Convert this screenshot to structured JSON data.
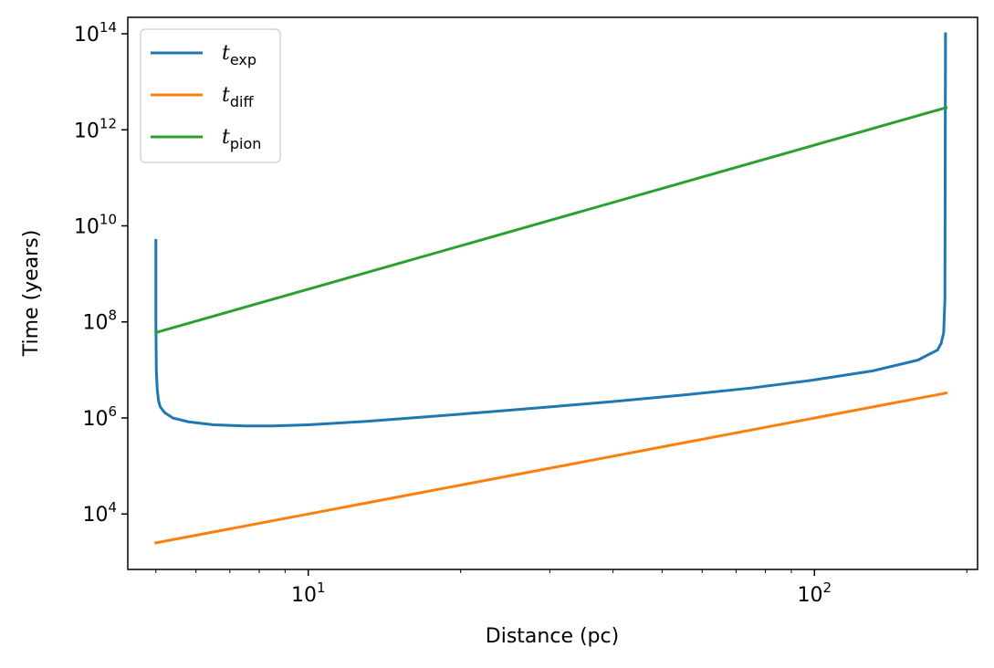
{
  "chart_data": {
    "type": "line",
    "xlabel": "Distance (pc)",
    "ylabel": "Time (years)",
    "xscale": "log",
    "yscale": "log",
    "xlim": [
      4.4,
      210
    ],
    "ylim": [
      700,
      220000000000000.0
    ],
    "x_major_ticks": [
      {
        "value": 10,
        "base": "10",
        "exp": "1"
      },
      {
        "value": 100,
        "base": "10",
        "exp": "2"
      }
    ],
    "y_major_ticks": [
      {
        "value": 10000,
        "base": "10",
        "exp": "4"
      },
      {
        "value": 1000000,
        "base": "10",
        "exp": "6"
      },
      {
        "value": 100000000,
        "base": "10",
        "exp": "8"
      },
      {
        "value": 10000000000,
        "base": "10",
        "exp": "10"
      },
      {
        "value": 1000000000000,
        "base": "10",
        "exp": "12"
      },
      {
        "value": 100000000000000,
        "base": "10",
        "exp": "14"
      }
    ],
    "legend_position": "upper-left",
    "grid": false,
    "series": [
      {
        "name": "t_exp",
        "label_main": "t",
        "label_sub": "exp",
        "color": "#1f77b4",
        "x": [
          5.0,
          5.0,
          5.01,
          5.03,
          5.06,
          5.1,
          5.2,
          5.4,
          5.8,
          6.5,
          7.5,
          8.5,
          10,
          13,
          17,
          23,
          30,
          40,
          55,
          75,
          100,
          130,
          160,
          175,
          178,
          180,
          181,
          181.5
        ],
        "y": [
          5000000000.0,
          100000000.0,
          10000000.0,
          4000000.0,
          2300000.0,
          1700000.0,
          1300000.0,
          1000000.0,
          830000.0,
          720000.0,
          680000.0,
          680000.0,
          720000.0,
          850000.0,
          1050000.0,
          1350000.0,
          1700000.0,
          2200000.0,
          3000000.0,
          4200000.0,
          6200000.0,
          9500000.0,
          16000000.0,
          26000000.0,
          36000000.0,
          60000000.0,
          300000000.0,
          100000000000000.0
        ]
      },
      {
        "name": "t_diff",
        "label_main": "t",
        "label_sub": "diff",
        "color": "#ff7f0e",
        "x": [
          5.0,
          182.0
        ],
        "y": [
          2500,
          3300000.0
        ]
      },
      {
        "name": "t_pion",
        "label_main": "t",
        "label_sub": "pion",
        "color": "#2ca02c",
        "x": [
          5.0,
          182.0
        ],
        "y": [
          60000000.0,
          2900000000000.0
        ]
      }
    ]
  }
}
